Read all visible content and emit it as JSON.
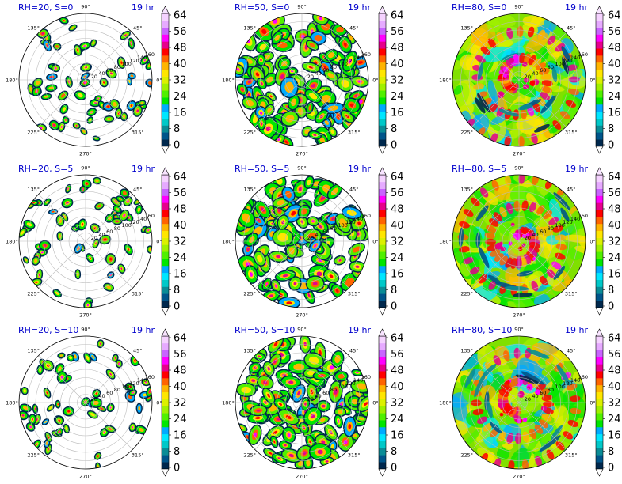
{
  "chart_data": {
    "type": "heatmap",
    "projection": "polar",
    "time_label": "19 hr",
    "angle_ticks": [
      "0°",
      "45°",
      "90°",
      "135°",
      "180°",
      "225°",
      "270°",
      "315°"
    ],
    "radial_ticks": [
      "20",
      "40",
      "60",
      "80",
      "100",
      "120",
      "140",
      "160"
    ],
    "colorbar": {
      "ticks": [
        "0",
        "8",
        "16",
        "24",
        "32",
        "40",
        "48",
        "56",
        "64"
      ],
      "range": [
        0,
        64
      ],
      "extend": "both",
      "colors": [
        "#00284d",
        "#00558a",
        "#0a8c96",
        "#00c8c8",
        "#00e6ff",
        "#00aaff",
        "#00e600",
        "#50f000",
        "#a0f000",
        "#dcf000",
        "#ffe600",
        "#ffb400",
        "#ff6400",
        "#ff0000",
        "#e6008c",
        "#ff00ff",
        "#c864ff",
        "#e6aaff",
        "#f5d2ff"
      ]
    },
    "panels": [
      {
        "title": "RH=20, S=0",
        "rh": 20,
        "s": 0,
        "coverage": 0.25
      },
      {
        "title": "RH=50, S=0",
        "rh": 50,
        "s": 0,
        "coverage": 0.62
      },
      {
        "title": "RH=80, S=0",
        "rh": 80,
        "s": 0,
        "coverage": 0.95
      },
      {
        "title": "RH=20, S=5",
        "rh": 20,
        "s": 5,
        "coverage": 0.25
      },
      {
        "title": "RH=50, S=5",
        "rh": 50,
        "s": 5,
        "coverage": 0.65
      },
      {
        "title": "RH=80, S=5",
        "rh": 80,
        "s": 5,
        "coverage": 0.96
      },
      {
        "title": "RH=20, S=10",
        "rh": 20,
        "s": 10,
        "coverage": 0.24
      },
      {
        "title": "RH=50, S=10",
        "rh": 50,
        "s": 10,
        "coverage": 0.68
      },
      {
        "title": "RH=80, S=10",
        "rh": 80,
        "s": 10,
        "coverage": 0.95
      }
    ]
  }
}
